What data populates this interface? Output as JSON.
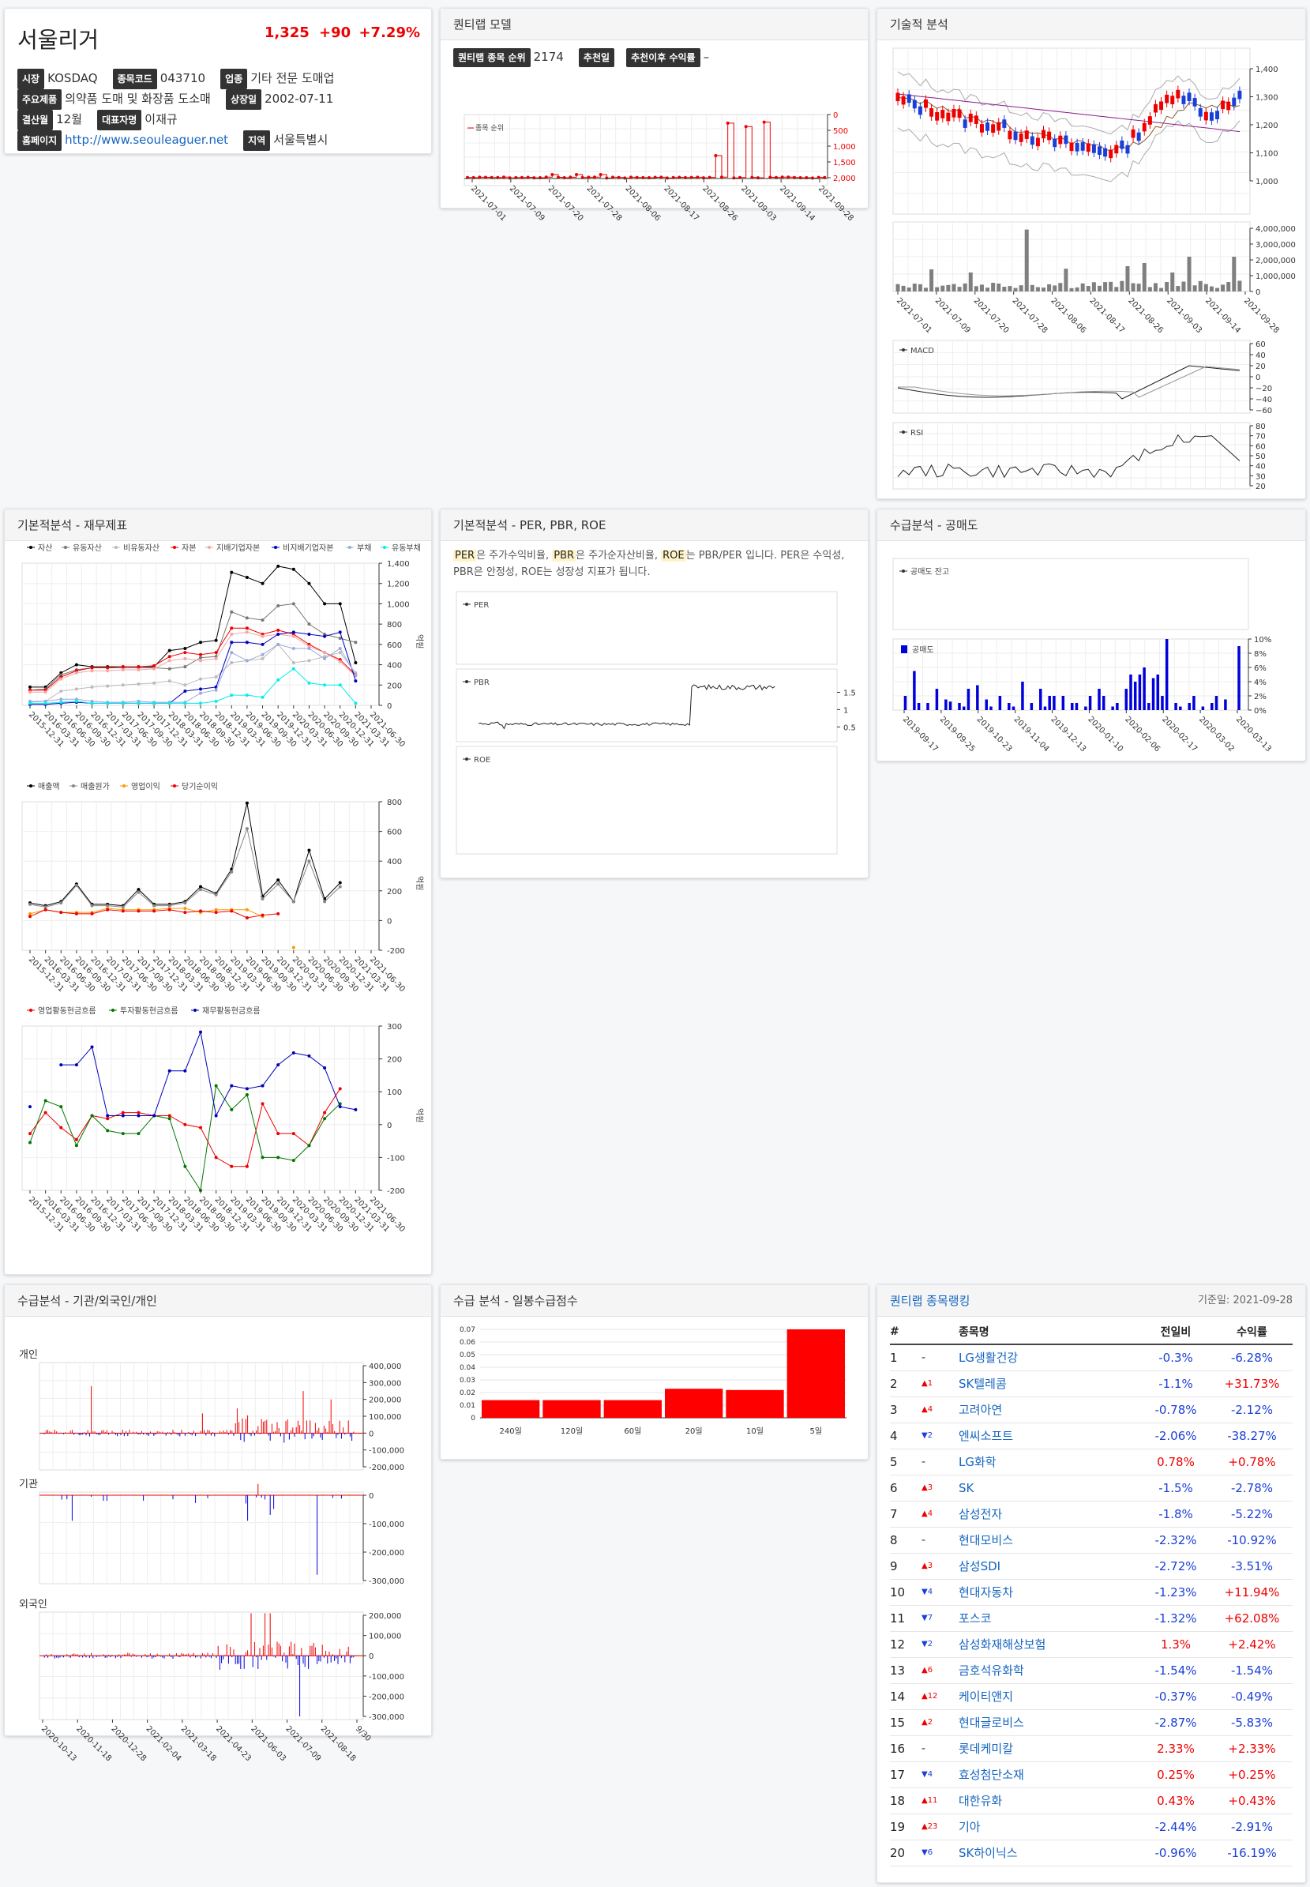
{
  "company": {
    "name": "서울리거",
    "price": "1,325",
    "change": "+90",
    "change_pct": "+7.29%",
    "fields": {
      "market_label": "시장",
      "market": "KOSDAQ",
      "code_label": "종목코드",
      "code": "043710",
      "industry_label": "업종",
      "industry": "기타 전문 도매업",
      "products_label": "주요제품",
      "products": "의약품 도매 및 화장품 도소매",
      "listed_label": "상장일",
      "listed": "2002-07-11",
      "fiscal_label": "결산월",
      "fiscal": "12월",
      "ceo_label": "대표자명",
      "ceo": "이재규",
      "homepage_label": "홈페이지",
      "homepage": "http://www.seouleaguer.net",
      "region_label": "지역",
      "region": "서울특별시"
    }
  },
  "quant": {
    "title": "퀀티랩 모델",
    "rank_label": "퀀티랩 종목 순위",
    "rank": "2174",
    "rec_date_label": "추천일",
    "rec_return_label": "추천이후 수익률",
    "rec_return": "–",
    "legend": "종목 순위",
    "y_ticks": [
      "0",
      "500",
      "1,000",
      "1,500",
      "2,000"
    ],
    "x_ticks": [
      "2021-07-01",
      "2021-07-09",
      "2021-07-20",
      "2021-07-28",
      "2021-08-06",
      "2021-08-17",
      "2021-08-26",
      "2021-09-03",
      "2021-09-14",
      "2021-09-28"
    ]
  },
  "tech": {
    "title": "기술적 분석",
    "price_ticks": [
      "1,400",
      "1,300",
      "1,200",
      "1,100",
      "1,000"
    ],
    "vol_ticks": [
      "4,000,000",
      "3,000,000",
      "2,000,000",
      "1,000,000",
      "0"
    ],
    "x_ticks": [
      "2021-07-01",
      "2021-07-09",
      "2021-07-20",
      "2021-07-28",
      "2021-08-06",
      "2021-08-17",
      "2021-08-26",
      "2021-09-03",
      "2021-09-14",
      "2021-09-28"
    ],
    "macd_legend": "MACD",
    "macd_ticks": [
      "60",
      "40",
      "20",
      "0",
      "−20",
      "−40",
      "−60"
    ],
    "rsi_legend": "RSI",
    "rsi_ticks": [
      "80",
      "70",
      "60",
      "50",
      "40",
      "30",
      "20"
    ]
  },
  "fin": {
    "title": "기본적분석 - 재무제표",
    "legend1": [
      "자산",
      "유동자산",
      "비유동자산",
      "자본",
      "지배기업자본",
      "비지배기업자본",
      "부채",
      "유동부채"
    ],
    "ticks1": [
      "1,400",
      "1,200",
      "1,000",
      "800",
      "600",
      "400",
      "200",
      "0"
    ],
    "legend2": [
      "매출액",
      "매출원가",
      "영업이익",
      "당기순이익"
    ],
    "ticks2": [
      "800",
      "600",
      "400",
      "200",
      "0",
      "-200"
    ],
    "legend3": [
      "영업활동현금흐름",
      "투자활동현금흐름",
      "재무활동현금흐름"
    ],
    "ticks3": [
      "300",
      "200",
      "100",
      "0",
      "-100",
      "-200"
    ],
    "unit": "억원",
    "x_ticks": [
      "2015-12-31",
      "2016-03-31",
      "2016-06-30",
      "2016-09-30",
      "2016-12-31",
      "2017-03-31",
      "2017-06-30",
      "2017-09-30",
      "2017-12-31",
      "2018-03-31",
      "2018-06-30",
      "2018-09-30",
      "2018-12-31",
      "2019-03-31",
      "2019-06-30",
      "2019-09-30",
      "2019-12-31",
      "2020-03-31",
      "2020-06-30",
      "2020-09-30",
      "2020-12-31",
      "2021-03-31",
      "2021-06-30"
    ]
  },
  "per": {
    "title": "기본적분석 - PER, PBR, ROE",
    "desc_per": "PER",
    "desc_1": "은 주가수익비율,",
    "desc_pbr": "PBR",
    "desc_2": "은 주가순자산비율,",
    "desc_roe": "ROE",
    "desc_3": "는 PBR/PER 입니다. PER은 수익성, PBR은 안정성, ROE는 성장성 지표가 됩니다.",
    "per_legend": "PER",
    "pbr_legend": "PBR",
    "roe_legend": "ROE",
    "pbr_ticks": [
      "1.5",
      "1",
      "0.5"
    ]
  },
  "short": {
    "title": "수급분석 - 공매도",
    "balance_legend": "공매도 잔고",
    "vol_legend": "공매도",
    "ticks": [
      "10%",
      "8%",
      "6%",
      "4%",
      "2%",
      "0%"
    ],
    "x_ticks": [
      "2019-09-17",
      "2019-09-25",
      "2019-10-23",
      "2019-11-04",
      "2019-12-13",
      "2020-01-10",
      "2020-02-06",
      "2020-02-17",
      "2020-03-02",
      "2020-03-13"
    ]
  },
  "flows": {
    "title": "수급분석 - 기관/외국인/개인",
    "individual": "개인",
    "institution": "기관",
    "foreign": "외국인",
    "ind_ticks": [
      "400,000",
      "300,000",
      "200,000",
      "100,000",
      "0",
      "-100,000",
      "-200,000"
    ],
    "inst_ticks": [
      "0",
      "-100,000",
      "-200,000",
      "-300,000"
    ],
    "for_ticks": [
      "200,000",
      "100,000",
      "0",
      "-100,000",
      "-200,000",
      "-300,000"
    ],
    "x_ticks": [
      "2020-10-13",
      "2020-11-18",
      "2020-12-28",
      "2021-02-04",
      "2021-03-18",
      "2021-04-23",
      "2021-06-03",
      "2021-07-09",
      "2021-08-18",
      "9/30"
    ]
  },
  "score": {
    "title": "수급 분석 - 일봉수급점수",
    "ticks": [
      "0.07",
      "0.06",
      "0.05",
      "0.04",
      "0.03",
      "0.02",
      "0.01",
      "0"
    ],
    "chart_data": {
      "type": "bar",
      "categories": [
        "240일",
        "120일",
        "60일",
        "20일",
        "10일",
        "5일"
      ],
      "values": [
        0.014,
        0.014,
        0.014,
        0.023,
        0.022,
        0.07
      ],
      "ylim": [
        0,
        0.075
      ]
    }
  },
  "ranking": {
    "title": "퀀티랩 종목랭킹",
    "date": "기준일: 2021-09-28",
    "headers": [
      "#",
      "종목명",
      "전일비",
      "수익률"
    ],
    "rows": [
      {
        "n": "1",
        "mv": "-",
        "dir": "none",
        "name": "LG생활건강",
        "chg": "-0.3%",
        "ret": "-6.28%"
      },
      {
        "n": "2",
        "mv": "▲1",
        "dir": "up",
        "name": "SK텔레콤",
        "chg": "-1.1%",
        "ret": "+31.73%"
      },
      {
        "n": "3",
        "mv": "▲4",
        "dir": "up",
        "name": "고려아연",
        "chg": "-0.78%",
        "ret": "-2.12%"
      },
      {
        "n": "4",
        "mv": "▼2",
        "dir": "down",
        "name": "엔씨소프트",
        "chg": "-2.06%",
        "ret": "-38.27%"
      },
      {
        "n": "5",
        "mv": "-",
        "dir": "none",
        "name": "LG화학",
        "chg": "0.78%",
        "ret": "+0.78%"
      },
      {
        "n": "6",
        "mv": "▲3",
        "dir": "up",
        "name": "SK",
        "chg": "-1.5%",
        "ret": "-2.78%"
      },
      {
        "n": "7",
        "mv": "▲4",
        "dir": "up",
        "name": "삼성전자",
        "chg": "-1.8%",
        "ret": "-5.22%"
      },
      {
        "n": "8",
        "mv": "-",
        "dir": "none",
        "name": "현대모비스",
        "chg": "-2.32%",
        "ret": "-10.92%"
      },
      {
        "n": "9",
        "mv": "▲3",
        "dir": "up",
        "name": "삼성SDI",
        "chg": "-2.72%",
        "ret": "-3.51%"
      },
      {
        "n": "10",
        "mv": "▼4",
        "dir": "down",
        "name": "현대자동차",
        "chg": "-1.23%",
        "ret": "+11.94%"
      },
      {
        "n": "11",
        "mv": "▼7",
        "dir": "down",
        "name": "포스코",
        "chg": "-1.32%",
        "ret": "+62.08%"
      },
      {
        "n": "12",
        "mv": "▼2",
        "dir": "down",
        "name": "삼성화재해상보험",
        "chg": "1.3%",
        "ret": "+2.42%"
      },
      {
        "n": "13",
        "mv": "▲6",
        "dir": "up",
        "name": "금호석유화학",
        "chg": "-1.54%",
        "ret": "-1.54%"
      },
      {
        "n": "14",
        "mv": "▲12",
        "dir": "up",
        "name": "케이티앤지",
        "chg": "-0.37%",
        "ret": "-0.49%"
      },
      {
        "n": "15",
        "mv": "▲2",
        "dir": "up",
        "name": "현대글로비스",
        "chg": "-2.87%",
        "ret": "-5.83%"
      },
      {
        "n": "16",
        "mv": "-",
        "dir": "none",
        "name": "롯데케미칼",
        "chg": "2.33%",
        "ret": "+2.33%"
      },
      {
        "n": "17",
        "mv": "▼4",
        "dir": "down",
        "name": "효성첨단소재",
        "chg": "0.25%",
        "ret": "+0.25%"
      },
      {
        "n": "18",
        "mv": "▲11",
        "dir": "up",
        "name": "대한유화",
        "chg": "0.43%",
        "ret": "+0.43%"
      },
      {
        "n": "19",
        "mv": "▲23",
        "dir": "up",
        "name": "기아",
        "chg": "-2.44%",
        "ret": "-2.91%"
      },
      {
        "n": "20",
        "mv": "▼6",
        "dir": "down",
        "name": "SK하이닉스",
        "chg": "-0.96%",
        "ret": "-16.19%"
      }
    ]
  },
  "colors": {
    "up": "#e00000",
    "down": "#1a3fd8",
    "accent": "#1565c0"
  }
}
